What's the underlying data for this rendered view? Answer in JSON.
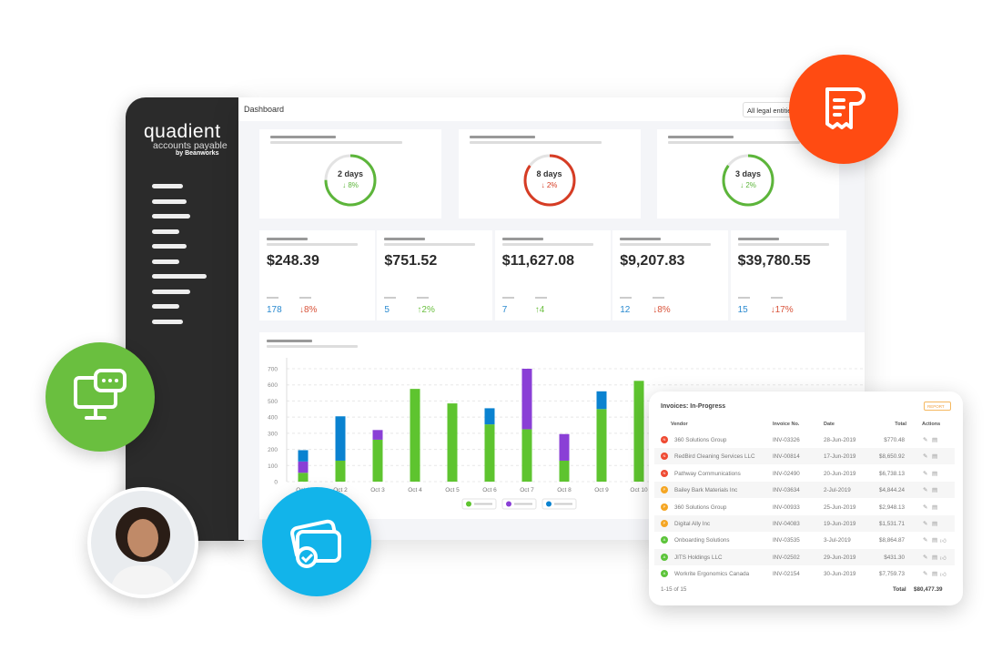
{
  "brand": {
    "name": "quadient",
    "product": "accounts payable",
    "by": "by Beanworks"
  },
  "header": {
    "title": "Dashboard",
    "entity_select": "All legal entities"
  },
  "colors": {
    "green": "#5ec42f",
    "purple": "#8a3fd6",
    "blue": "#0a82d0",
    "red": "#e0442b",
    "orange": "#ff4b12",
    "lime": "#6abf3f",
    "cyan": "#12b4ea"
  },
  "ring_cards": [
    {
      "value": "2 days",
      "change": "↓ 8%",
      "progress": 0.75,
      "color": "#5cb53a"
    },
    {
      "value": "8 days",
      "change": "↓ 2%",
      "progress": 0.85,
      "color": "#d63c24"
    },
    {
      "value": "3 days",
      "change": "↓ 2%",
      "progress": 0.85,
      "color": "#5cb53a"
    }
  ],
  "metric_cards": [
    {
      "amount": "$248.39",
      "count": "178",
      "change": "↓8%",
      "trend": "down"
    },
    {
      "amount": "$751.52",
      "count": "5",
      "change": "↑2%",
      "trend": "up"
    },
    {
      "amount": "$11,627.08",
      "count": "7",
      "change": "↑4",
      "trend": "up"
    },
    {
      "amount": "$9,207.83",
      "count": "12",
      "change": "↓8%",
      "trend": "down"
    },
    {
      "amount": "$39,780.55",
      "count": "15",
      "change": "↓17%",
      "trend": "down"
    }
  ],
  "chart_data": {
    "type": "bar",
    "stacked": true,
    "categories": [
      "Oct 1",
      "Oct 2",
      "Oct 3",
      "Oct 4",
      "Oct 5",
      "Oct 6",
      "Oct 7",
      "Oct 8",
      "Oct 9",
      "Oct 10"
    ],
    "series": [
      {
        "color": "#5ec42f",
        "values": [
          55,
          130,
          260,
          575,
          485,
          355,
          325,
          130,
          450,
          625
        ]
      },
      {
        "color": "#8a3fd6",
        "values": [
          70,
          0,
          60,
          0,
          0,
          0,
          375,
          165,
          0,
          0
        ]
      },
      {
        "color": "#0a82d0",
        "values": [
          70,
          275,
          0,
          0,
          0,
          100,
          0,
          0,
          110,
          0
        ]
      }
    ],
    "yticks": [
      0,
      100,
      200,
      300,
      400,
      500,
      600,
      700
    ],
    "ylim": [
      0,
      700
    ],
    "grid": true,
    "legend": "bottom"
  },
  "invoices": {
    "title": "Invoices: In-Progress",
    "report_label": "REPORT",
    "columns": [
      "Vendor",
      "Invoice No.",
      "Date",
      "Total",
      "Actions"
    ],
    "rows": [
      {
        "status": "N",
        "color": "#ef4a32",
        "vendor": "360 Solutions Group",
        "no": "INV-03326",
        "date": "28-Jun-2019",
        "total": "$770.48",
        "approve": false
      },
      {
        "status": "N",
        "color": "#ef4a32",
        "vendor": "RedBird Cleaning Services LLC",
        "no": "INV-00814",
        "date": "17-Jun-2019",
        "total": "$8,650.92",
        "approve": false
      },
      {
        "status": "N",
        "color": "#ef4a32",
        "vendor": "Pathway Communications",
        "no": "INV-02490",
        "date": "20-Jun-2019",
        "total": "$6,738.13",
        "approve": false
      },
      {
        "status": "P",
        "color": "#f5a623",
        "vendor": "Bailey Bark Materials Inc",
        "no": "INV-03634",
        "date": "2-Jul-2019",
        "total": "$4,844.24",
        "approve": false
      },
      {
        "status": "P",
        "color": "#f5a623",
        "vendor": "360 Solutions Group",
        "no": "INV-00933",
        "date": "25-Jun-2019",
        "total": "$2,948.13",
        "approve": false
      },
      {
        "status": "P",
        "color": "#f5a623",
        "vendor": "Digital Ally Inc",
        "no": "INV-04083",
        "date": "19-Jun-2019",
        "total": "$1,531.71",
        "approve": false
      },
      {
        "status": "A",
        "color": "#5cc43a",
        "vendor": "Onboarding Solutions",
        "no": "INV-03535",
        "date": "3-Jul-2019",
        "total": "$8,864.87",
        "approve": true
      },
      {
        "status": "A",
        "color": "#5cc43a",
        "vendor": "JITS Holdings LLC",
        "no": "INV-02502",
        "date": "29-Jun-2019",
        "total": "$431.30",
        "approve": true
      },
      {
        "status": "A",
        "color": "#5cc43a",
        "vendor": "Workrite Ergonomics Canada",
        "no": "INV-02154",
        "date": "30-Jun-2019",
        "total": "$7,759.73",
        "approve": true
      }
    ],
    "pagination": "1-15 of 15",
    "total_label": "Total",
    "total_value": "$80,477.39"
  }
}
